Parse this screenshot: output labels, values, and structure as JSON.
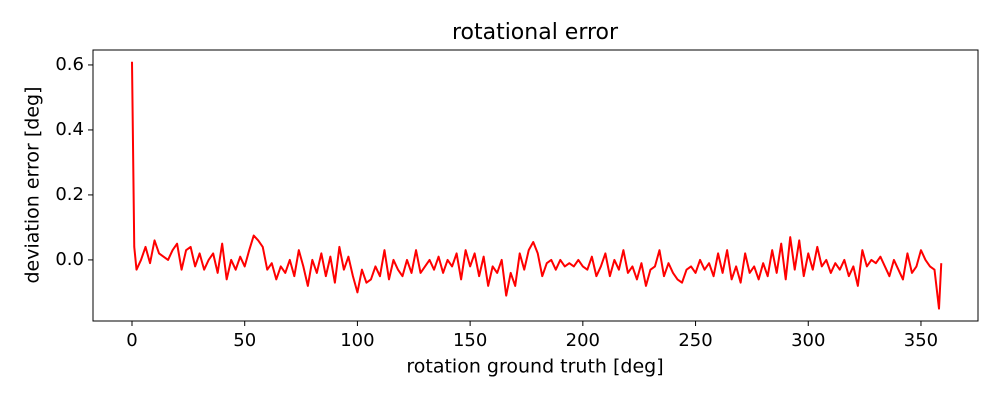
{
  "chart_data": {
    "type": "line",
    "title": "rotational error",
    "x_label": "rotation ground truth [deg]",
    "y_label": "deviation error [deg]",
    "xlim": [
      -17.3,
      375.3
    ],
    "ylim": [
      -0.188,
      0.646
    ],
    "xticks": [
      0,
      50,
      100,
      150,
      200,
      250,
      300,
      350
    ],
    "yticks": [
      {
        "value": 0,
        "label": "0.0"
      },
      0.2,
      0.4,
      0.6
    ],
    "x": [
      0,
      1,
      2,
      4,
      6,
      8,
      10,
      12,
      14,
      16,
      18,
      20,
      22,
      24,
      26,
      28,
      30,
      32,
      34,
      36,
      38,
      40,
      42,
      44,
      46,
      48,
      50,
      52,
      54,
      56,
      58,
      60,
      62,
      64,
      66,
      68,
      70,
      72,
      74,
      76,
      78,
      80,
      82,
      84,
      86,
      88,
      90,
      92,
      94,
      96,
      98,
      100,
      102,
      104,
      106,
      108,
      110,
      112,
      114,
      116,
      118,
      120,
      122,
      124,
      126,
      128,
      130,
      132,
      134,
      136,
      138,
      140,
      142,
      144,
      146,
      148,
      150,
      152,
      154,
      156,
      158,
      160,
      162,
      164,
      166,
      168,
      170,
      172,
      174,
      176,
      178,
      180,
      182,
      184,
      186,
      188,
      190,
      192,
      194,
      196,
      198,
      200,
      202,
      204,
      206,
      208,
      210,
      212,
      214,
      216,
      218,
      220,
      222,
      224,
      226,
      228,
      230,
      232,
      234,
      236,
      238,
      240,
      242,
      244,
      246,
      248,
      250,
      252,
      254,
      256,
      258,
      260,
      262,
      264,
      266,
      268,
      270,
      272,
      274,
      276,
      278,
      280,
      282,
      284,
      286,
      288,
      290,
      292,
      294,
      296,
      298,
      300,
      302,
      304,
      306,
      308,
      310,
      312,
      314,
      316,
      318,
      320,
      322,
      324,
      326,
      328,
      330,
      332,
      334,
      336,
      338,
      340,
      342,
      344,
      346,
      348,
      350,
      352,
      354,
      356,
      358,
      359
    ],
    "series": [
      {
        "color": "#ff0000",
        "values": [
          0.61,
          0.04,
          -0.03,
          0.0,
          0.04,
          -0.01,
          0.06,
          0.02,
          0.01,
          0.0,
          0.03,
          0.05,
          -0.03,
          0.03,
          0.04,
          -0.02,
          0.02,
          -0.03,
          0.0,
          0.02,
          -0.04,
          0.05,
          -0.06,
          0.0,
          -0.03,
          0.01,
          -0.02,
          0.03,
          0.075,
          0.06,
          0.04,
          -0.03,
          -0.01,
          -0.06,
          -0.02,
          -0.04,
          0.0,
          -0.05,
          0.03,
          -0.02,
          -0.08,
          0.0,
          -0.04,
          0.02,
          -0.05,
          0.01,
          -0.07,
          0.04,
          -0.03,
          0.01,
          -0.05,
          -0.1,
          -0.03,
          -0.07,
          -0.06,
          -0.02,
          -0.05,
          0.03,
          -0.06,
          0.0,
          -0.03,
          -0.05,
          0.0,
          -0.04,
          0.03,
          -0.04,
          -0.02,
          0.0,
          -0.03,
          0.01,
          -0.04,
          0.0,
          -0.02,
          0.02,
          -0.06,
          0.03,
          -0.02,
          0.02,
          -0.05,
          0.01,
          -0.08,
          -0.02,
          -0.04,
          0.0,
          -0.11,
          -0.04,
          -0.08,
          0.02,
          -0.03,
          0.03,
          0.055,
          0.02,
          -0.05,
          -0.01,
          0.0,
          -0.03,
          0.0,
          -0.02,
          -0.01,
          -0.02,
          0.0,
          -0.02,
          -0.03,
          0.01,
          -0.05,
          -0.02,
          0.02,
          -0.05,
          0.0,
          -0.03,
          0.03,
          -0.04,
          -0.02,
          -0.06,
          -0.01,
          -0.08,
          -0.03,
          -0.02,
          0.03,
          -0.05,
          -0.01,
          -0.04,
          -0.06,
          -0.07,
          -0.03,
          -0.02,
          -0.04,
          0.0,
          -0.03,
          -0.01,
          -0.05,
          0.02,
          -0.04,
          0.03,
          -0.06,
          -0.02,
          -0.07,
          0.02,
          -0.04,
          -0.02,
          -0.06,
          -0.01,
          -0.05,
          0.03,
          -0.04,
          0.05,
          -0.06,
          0.07,
          -0.03,
          0.06,
          -0.05,
          0.02,
          -0.03,
          0.04,
          -0.02,
          0.0,
          -0.04,
          -0.01,
          -0.03,
          0.0,
          -0.05,
          -0.02,
          -0.08,
          0.03,
          -0.02,
          0.0,
          -0.01,
          0.01,
          -0.02,
          -0.05,
          0.0,
          -0.03,
          -0.06,
          0.02,
          -0.04,
          -0.02,
          0.03,
          0.0,
          -0.02,
          -0.03,
          -0.15,
          -0.01
        ]
      }
    ]
  }
}
